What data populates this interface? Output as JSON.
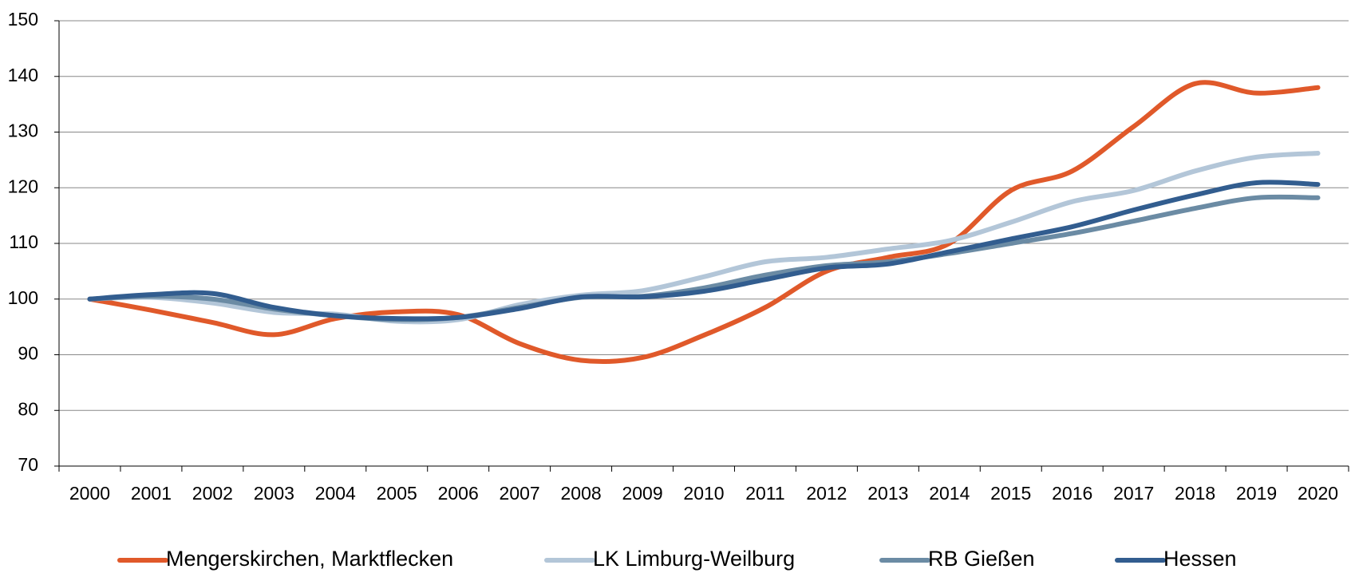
{
  "chart_data": {
    "type": "line",
    "categories": [
      "2000",
      "2001",
      "2002",
      "2003",
      "2004",
      "2005",
      "2006",
      "2007",
      "2008",
      "2009",
      "2010",
      "2011",
      "2012",
      "2013",
      "2014",
      "2015",
      "2016",
      "2017",
      "2018",
      "2019",
      "2020"
    ],
    "series": [
      {
        "name": "Mengerskirchen, Marktflecken",
        "color": "#e0592a",
        "values": [
          100,
          98,
          95.8,
          93.6,
          96.5,
          97.7,
          97.2,
          92,
          89,
          89.5,
          93.5,
          98.5,
          105,
          107.5,
          110,
          119.5,
          123,
          131,
          138.7,
          137,
          138
        ]
      },
      {
        "name": "LK Limburg-Weilburg",
        "color": "#b3c6d8",
        "values": [
          100,
          100.3,
          99.3,
          97.6,
          97.3,
          96,
          96.3,
          99,
          100.7,
          101.5,
          104,
          106.7,
          107.5,
          109,
          110.5,
          113.8,
          117.5,
          119.5,
          123,
          125.5,
          126.2
        ]
      },
      {
        "name": "RB Gießen",
        "color": "#6b8ba4",
        "values": [
          100,
          100.5,
          100,
          98.2,
          97,
          96.3,
          96.7,
          98.5,
          100.3,
          100.5,
          102,
          104.3,
          106,
          106.7,
          108.2,
          110,
          111.8,
          114,
          116.3,
          118.2,
          118.2
        ]
      },
      {
        "name": "Hessen",
        "color": "#325d8f",
        "values": [
          100,
          100.8,
          101,
          98.5,
          97,
          96.5,
          96.7,
          98.3,
          100.4,
          100.4,
          101.4,
          103.5,
          105.6,
          106.3,
          108.5,
          110.8,
          113,
          116,
          118.7,
          120.9,
          120.6
        ]
      }
    ],
    "ylim": [
      70,
      150
    ],
    "yticks": [
      70,
      80,
      90,
      100,
      110,
      120,
      130,
      140,
      150
    ],
    "grid": true
  }
}
